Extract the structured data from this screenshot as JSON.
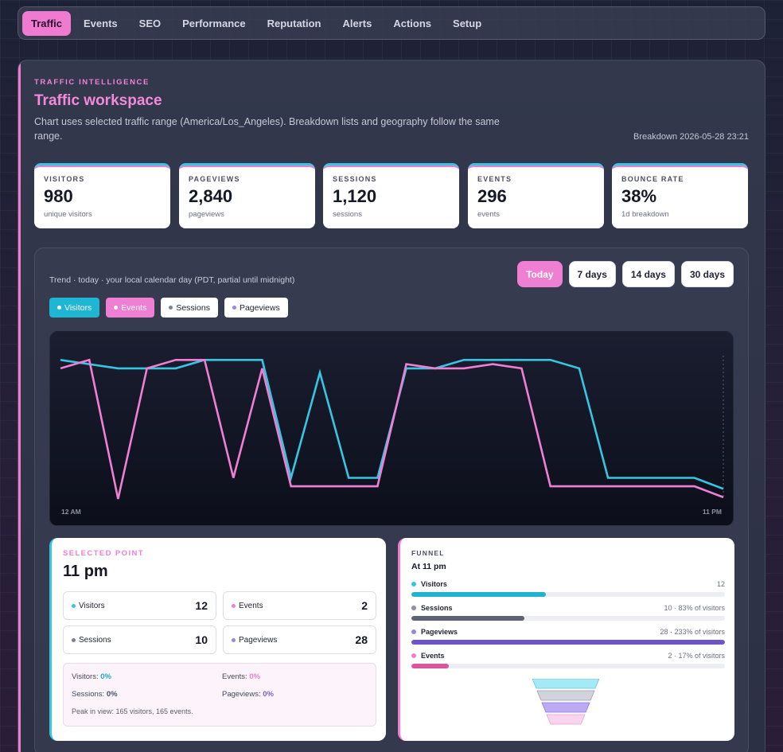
{
  "nav": {
    "tabs": [
      {
        "label": "Traffic",
        "active": true
      },
      {
        "label": "Events"
      },
      {
        "label": "SEO"
      },
      {
        "label": "Performance"
      },
      {
        "label": "Reputation"
      },
      {
        "label": "Alerts"
      },
      {
        "label": "Actions"
      },
      {
        "label": "Setup"
      }
    ]
  },
  "header": {
    "eyebrow": "TRAFFIC INTELLIGENCE",
    "title": "Traffic workspace",
    "subtitle": "Chart uses selected traffic range (America/Los_Angeles). Breakdown lists and geography follow the same range.",
    "breakdown": "Breakdown 2026-05-28 23:21"
  },
  "kpis": [
    {
      "label": "VISITORS",
      "value": "980",
      "sub": "unique visitors"
    },
    {
      "label": "PAGEVIEWS",
      "value": "2,840",
      "sub": "pageviews"
    },
    {
      "label": "SESSIONS",
      "value": "1,120",
      "sub": "sessions"
    },
    {
      "label": "EVENTS",
      "value": "296",
      "sub": "events"
    },
    {
      "label": "BOUNCE RATE",
      "value": "38%",
      "sub": "1d breakdown"
    }
  ],
  "trend": {
    "label": "Trend · today · your local calendar day (PDT, partial until midnight)",
    "ranges": [
      {
        "label": "Today",
        "active": true
      },
      {
        "label": "7 days"
      },
      {
        "label": "14 days"
      },
      {
        "label": "30 days"
      }
    ],
    "toggles": [
      {
        "label": "Visitors",
        "on": true
      },
      {
        "label": "Events",
        "on": true
      },
      {
        "label": "Sessions"
      },
      {
        "label": "Pageviews"
      }
    ]
  },
  "colors": {
    "visitors": "#37c6e2",
    "events": "#ef7fd3",
    "sessions": "#7c8092",
    "pageviews": "#9a86e0"
  },
  "chart_data": {
    "type": "line",
    "x_tick_labels": [
      "12 AM",
      "11 PM"
    ],
    "series": [
      {
        "name": "Visitors",
        "values": [
          165,
          160,
          155,
          155,
          155,
          165,
          165,
          165,
          25,
          150,
          25,
          25,
          155,
          155,
          165,
          165,
          165,
          165,
          155,
          25,
          25,
          25,
          25,
          12
        ]
      },
      {
        "name": "Events",
        "values": [
          155,
          165,
          0,
          155,
          165,
          165,
          25,
          155,
          15,
          15,
          15,
          15,
          160,
          155,
          155,
          160,
          155,
          15,
          15,
          15,
          15,
          15,
          15,
          2
        ]
      }
    ],
    "ylim": [
      0,
      170
    ]
  },
  "selected": {
    "eyebrow": "SELECTED POINT",
    "time": "11 pm",
    "metrics": [
      {
        "name": "Visitors",
        "value": "12"
      },
      {
        "name": "Events",
        "value": "2"
      },
      {
        "name": "Sessions",
        "value": "10"
      },
      {
        "name": "Pageviews",
        "value": "28"
      }
    ],
    "deltas": {
      "visitors_label": "Visitors:",
      "visitors_pct": "0%",
      "events_label": "Events:",
      "events_pct": "0%",
      "sessions_label": "Sessions:",
      "sessions_pct": "0%",
      "pageviews_label": "Pageviews:",
      "pageviews_pct": "0%",
      "peak": "Peak in view: 165 visitors, 165 events."
    }
  },
  "funnel": {
    "eyebrow": "FUNNEL",
    "title": "At 11 pm",
    "rows": [
      {
        "name": "Visitors",
        "meta": "12",
        "fill": 0.43
      },
      {
        "name": "Sessions",
        "meta": "10 · 83% of visitors",
        "fill": 0.36
      },
      {
        "name": "Pageviews",
        "meta": "28 · 233% of visitors",
        "fill": 1.0
      },
      {
        "name": "Events",
        "meta": "2 · 17% of visitors",
        "fill": 0.12
      }
    ]
  }
}
